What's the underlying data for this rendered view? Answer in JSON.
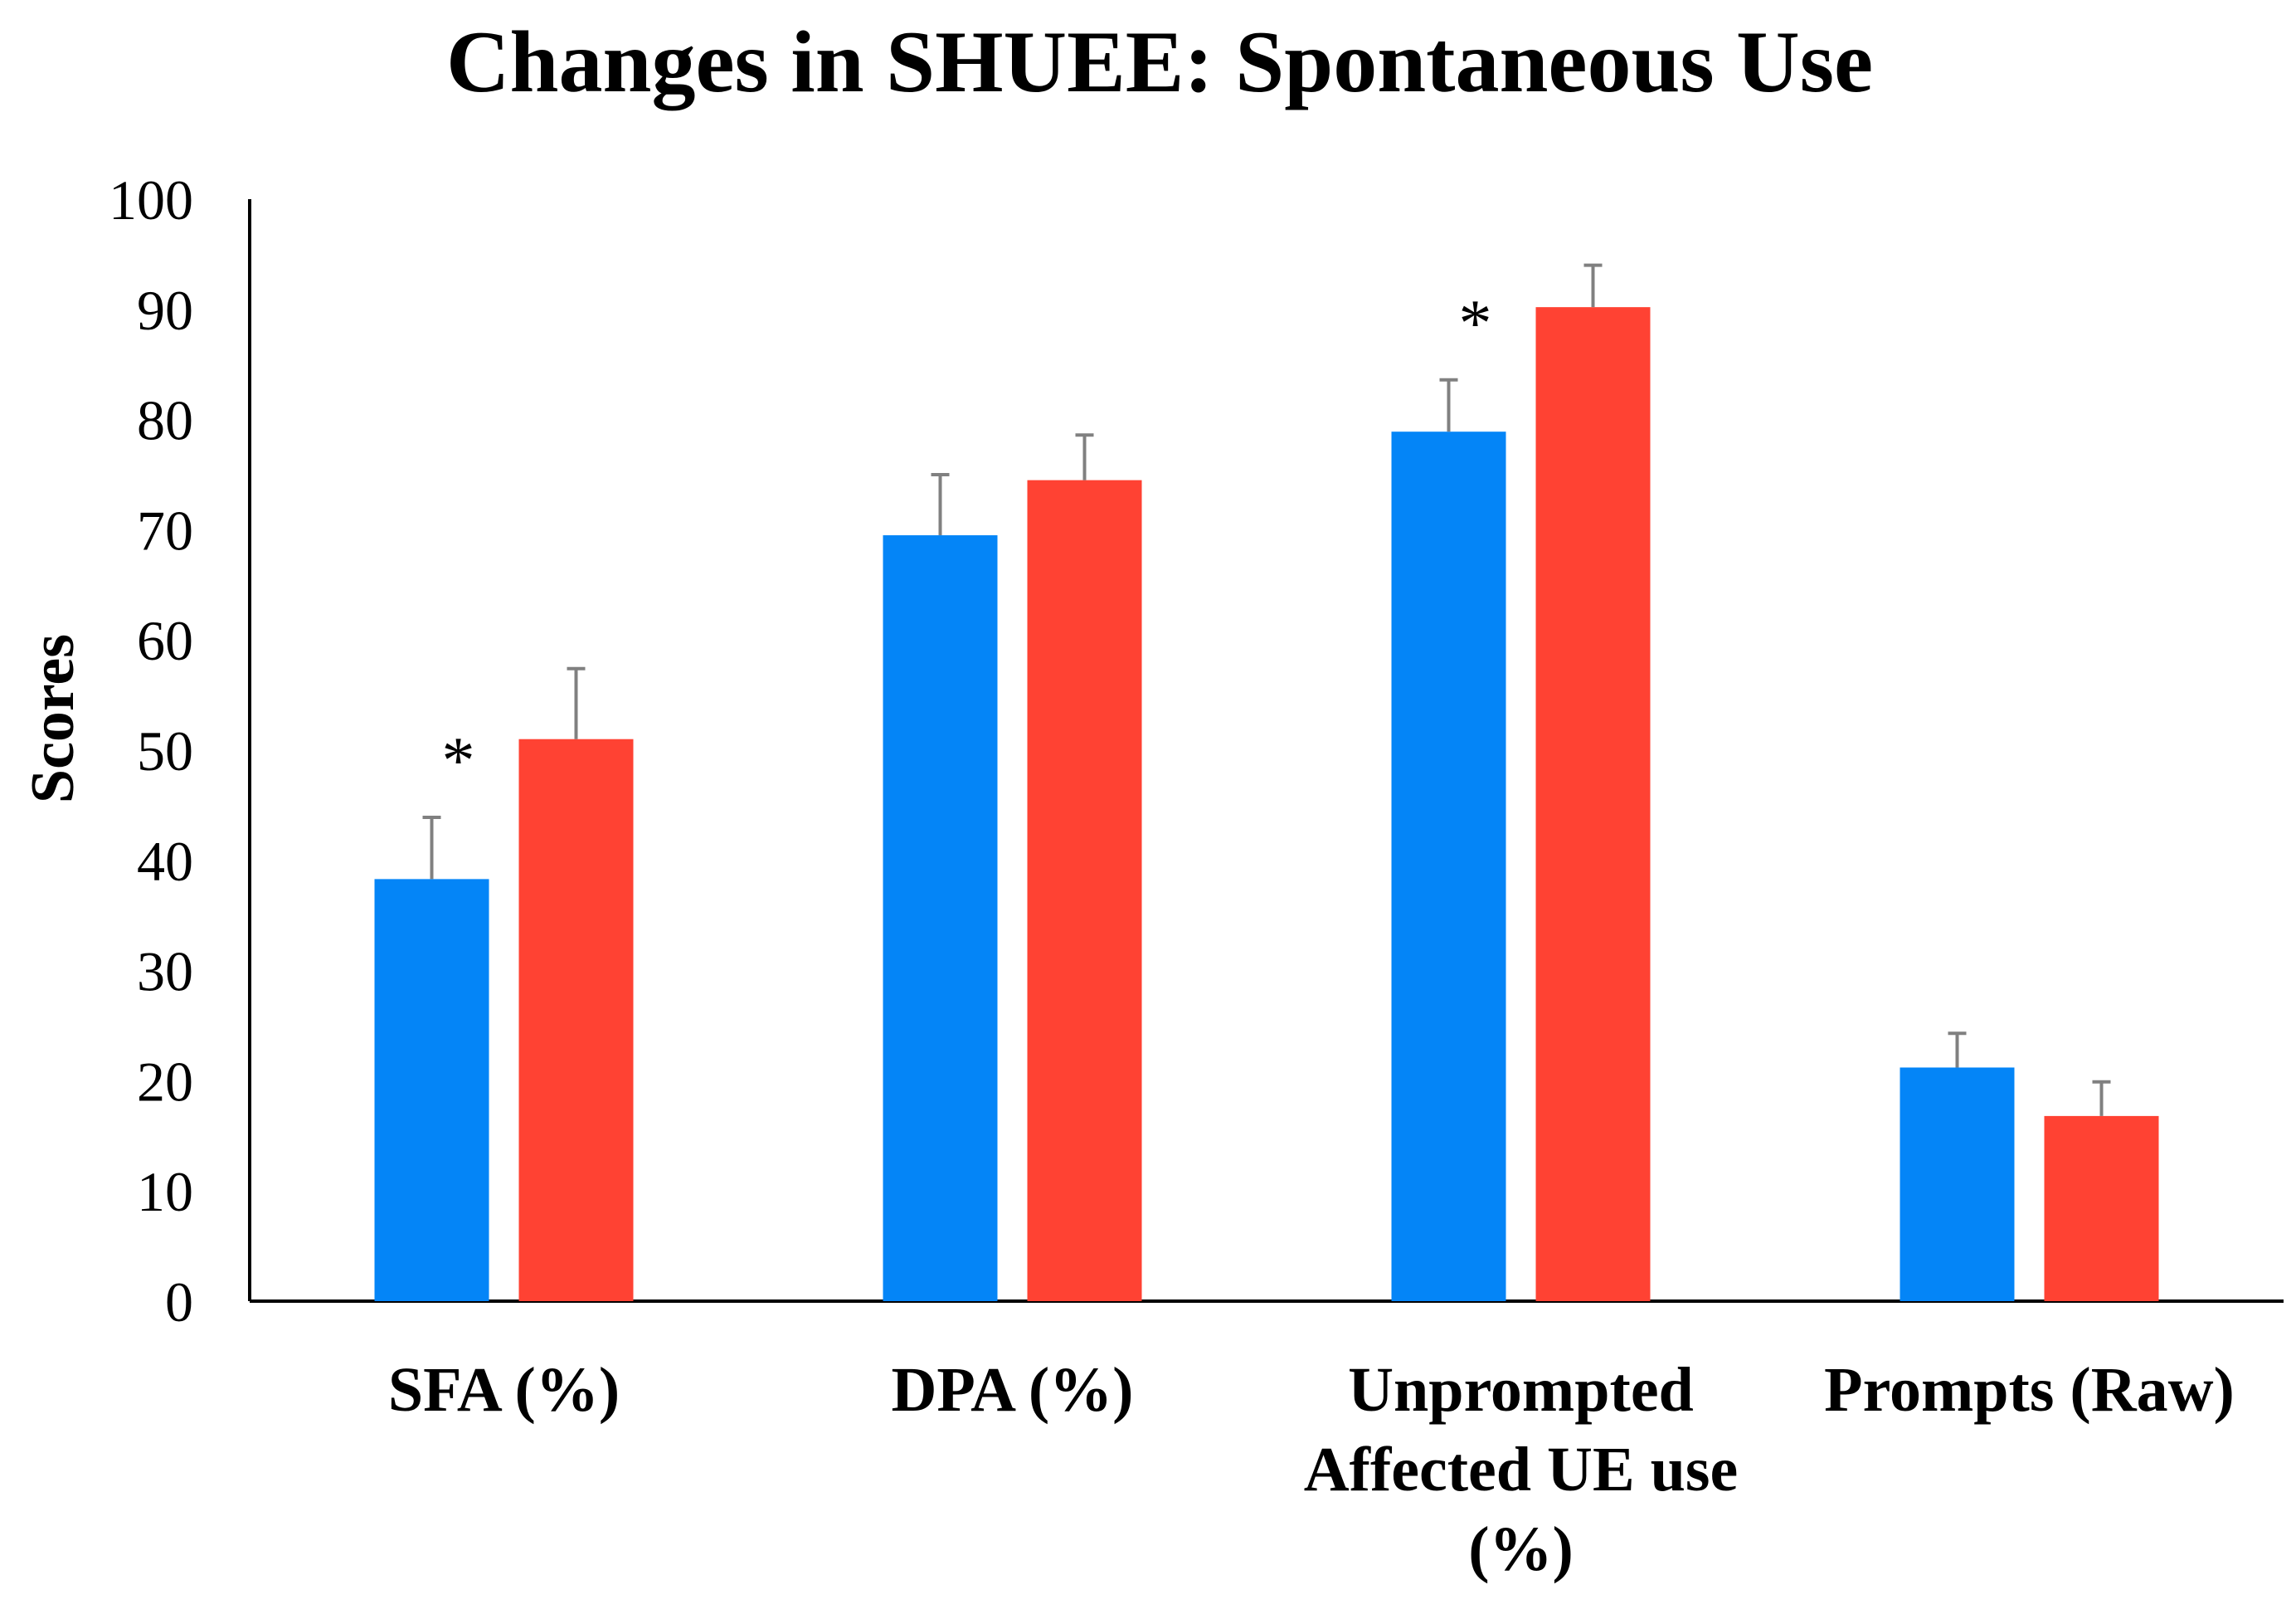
{
  "chart_data": {
    "type": "bar",
    "title": "Changes in SHUEE: Spontaneous Use",
    "xlabel": "",
    "ylabel": "Scores",
    "ylim": [
      0,
      100
    ],
    "yticks": [
      "0",
      "10",
      "20",
      "30",
      "40",
      "50",
      "60",
      "70",
      "80",
      "90",
      "100"
    ],
    "grid": false,
    "legend": "none",
    "categories": [
      [
        "SFA (%)"
      ],
      [
        "DPA (%)"
      ],
      [
        "Unprompted",
        "Affected UE use",
        "(%)"
      ],
      [
        "Prompts (Raw)"
      ]
    ],
    "series": [
      {
        "color": "#0485F7",
        "values": [
          38.3,
          69.5,
          78.9,
          21.2
        ],
        "errors": [
          5.6,
          5.5,
          4.7,
          3.1
        ]
      },
      {
        "color": "#FF4233",
        "values": [
          51.0,
          74.5,
          90.2,
          16.8
        ],
        "errors": [
          6.4,
          4.1,
          3.8,
          3.1
        ]
      }
    ],
    "significance": [
      {
        "category_index": 0,
        "label": "*"
      },
      {
        "category_index": 2,
        "label": "*"
      }
    ],
    "error_bar_color": "#808080"
  }
}
